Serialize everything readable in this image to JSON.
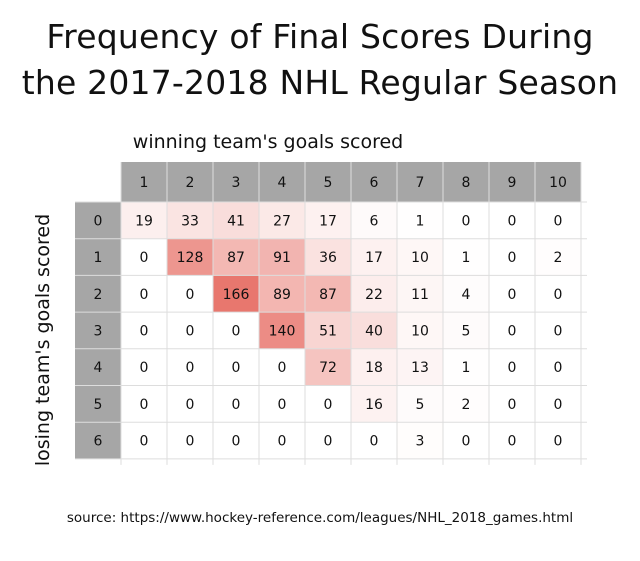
{
  "title_line1": "Frequency of Final Scores During",
  "title_line2": "the 2017-2018 NHL Regular Season",
  "source": "source: https://www.hockey-reference.com/leagues/NHL_2018_games.html",
  "colors": {
    "header_bg": "#a6a6a6",
    "grid": "#dddddd",
    "high": "#e8776e",
    "low": "#ffffff"
  },
  "chart_data": {
    "type": "heatmap",
    "xlabel": "winning team's goals scored",
    "ylabel": "losing team's goals scored",
    "x_categories": [
      "1",
      "2",
      "3",
      "4",
      "5",
      "6",
      "7",
      "8",
      "9",
      "10"
    ],
    "y_categories": [
      "0",
      "1",
      "2",
      "3",
      "4",
      "5",
      "6"
    ],
    "values": [
      [
        19,
        33,
        41,
        27,
        17,
        6,
        1,
        0,
        0,
        0
      ],
      [
        0,
        128,
        87,
        91,
        36,
        17,
        10,
        1,
        0,
        2
      ],
      [
        0,
        0,
        166,
        89,
        87,
        22,
        11,
        4,
        0,
        0
      ],
      [
        0,
        0,
        0,
        140,
        51,
        40,
        10,
        5,
        0,
        0
      ],
      [
        0,
        0,
        0,
        0,
        72,
        18,
        13,
        1,
        0,
        0
      ],
      [
        0,
        0,
        0,
        0,
        0,
        16,
        5,
        2,
        0,
        0
      ],
      [
        0,
        0,
        0,
        0,
        0,
        0,
        3,
        0,
        0,
        0
      ]
    ]
  }
}
